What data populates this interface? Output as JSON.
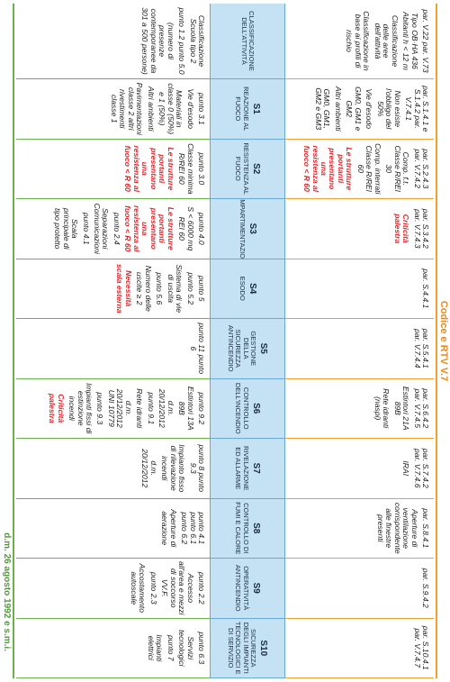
{
  "codice_title": "Codice e RTV V.7",
  "dm_title": "d.m. 26 agosto 1992 e s.m.i.",
  "rows": [
    {
      "title": "Classificazione dell'attività",
      "codice": [
        {
          "text": "par. V.22 par. V.73"
        },
        {
          "text": "Tipo OB·HA 436 Abitanti h < 12 m"
        },
        {
          "text": "Classificazione delle aree dell'attività"
        },
        {
          "text": "Classificazione in base ai profili di rischio"
        }
      ],
      "dm": [
        {
          "text": "Classificazione Scuola tipo 2"
        },
        {
          "text": "punto 1.2 punto 5.0"
        },
        {
          "text": "(numero di presenze contemporanee da 301 a 500 persone)"
        }
      ]
    },
    {
      "code": "S1",
      "title": "Reazione al fuoco",
      "codice": [
        {
          "text": "par. S.1.4.1 e S.1.4.2 par. V.7.4.1"
        },
        {
          "text": "Non esiste l'obbligo del 50%"
        },
        {
          "text": "Vie d'esodo"
        },
        {
          "text": "GM0, GM1 e GM2"
        },
        {
          "text": "Altri ambienti"
        },
        {
          "text": "GM0, GM1, GM2 e GM3"
        }
      ],
      "dm": [
        {
          "text": "punto 3.1"
        },
        {
          "text": "Vie d'esodo"
        },
        {
          "text": "Materiali in classe 0 (50%) e 1 (50%)"
        },
        {
          "text": "Altri ambienti"
        },
        {
          "text": "Pavimentazioni classe 2 altri rivestimenti classe 1"
        }
      ]
    },
    {
      "code": "S2",
      "title": "Resistenza al fuoco",
      "codice": [
        {
          "text": "par. S.2.4.3 par. V.7.4.2"
        },
        {
          "text": "Comp. f.t. Classe R/REI 30"
        },
        {
          "text": "Comp. interrati Classe R/REI 60"
        },
        {
          "text": "Le strutture portanti presentano una resistenza al fuoco < R 60",
          "color": "#e0262b"
        }
      ],
      "dm": [
        {
          "text": "punto 3.0"
        },
        {
          "text": "Classe minima R/REI 60"
        },
        {
          "text": "Le strutture portanti presentano una resistenza al fuoco < R 60",
          "color": "#e0262b"
        }
      ]
    },
    {
      "code": "S3",
      "title": "Compartimentazione",
      "codice": [
        {
          "text": "par. S.3.4.2 par. V.7.4.3"
        },
        {
          "text": "Criticità palestra",
          "color": "#e0262b"
        }
      ],
      "dm": [
        {
          "text": "punto 4.0"
        },
        {
          "text": "S < 6000 mq REI 60"
        },
        {
          "text": "Le strutture portanti presentano una resistenza al fuoco < R 60",
          "color": "#e0262b"
        },
        {
          "text": "punto 2.4"
        },
        {
          "text": "Separazioni Comunicazioni"
        },
        {
          "text": "punto 4.1"
        },
        {
          "text": "Scala principale di tipo protetto"
        }
      ]
    },
    {
      "code": "S4",
      "title": "Esodo",
      "codice": [
        {
          "text": "par. S.4.4.1"
        }
      ],
      "dm": [
        {
          "text": "punto 5"
        },
        {
          "text": "punto 5.2"
        },
        {
          "text": "Sistema di vie di uscita"
        },
        {
          "text": "punto 5.6"
        },
        {
          "text": "Numero delle uscite ≥ 2"
        },
        {
          "text": "Necessità scala esterna",
          "color": "#e0262b"
        }
      ]
    },
    {
      "code": "S5",
      "title": "Gestione della sicurezza antincendio",
      "codice": [
        {
          "text": "par. S.5.4.1 par. V.7.4.4"
        }
      ],
      "dm": [
        {
          "text": "punto 11 punto 6"
        }
      ]
    },
    {
      "code": "S6",
      "title": "Controllo dell'incendio",
      "codice": [
        {
          "text": "par. S.6.4.2 par. V.7.4.5"
        },
        {
          "text": "Estintori 21A 89B"
        },
        {
          "text": "Rete idranti (naspi)"
        }
      ],
      "dm": [
        {
          "text": "punto 9.2"
        },
        {
          "text": "Estintori 13A 89B"
        },
        {
          "text": "d.m. 20/12/2012"
        },
        {
          "text": "punto 9.1"
        },
        {
          "text": "Rete idranti"
        },
        {
          "text": "d.m. 20/12/2012 UNI 10779"
        },
        {
          "text": "punto 9.3"
        },
        {
          "text": "Impianti fissi di estinzione incendi"
        },
        {
          "text": "Criticità palestra",
          "color": "#e0262b"
        }
      ]
    },
    {
      "code": "S7",
      "title": "Rivelazione ed allarme",
      "codice": [
        {
          "text": "par. S.7.4.2 par. V.7.4.6"
        },
        {
          "text": "IRAI"
        }
      ],
      "dm": [
        {
          "text": "punto 8 punto 9.3"
        },
        {
          "text": "Impianto fisso di rilevazione incendi"
        },
        {
          "text": "d.m. 20/12/2012"
        }
      ]
    },
    {
      "code": "S8",
      "title": "Controllo di fumi e calore",
      "codice": [
        {
          "text": "par. S.8.4.1"
        },
        {
          "text": "Aperture di ventilazione corrispondente alle finestre presenti"
        }
      ],
      "dm": [
        {
          "text": "punto 4.1 punto 6.1 punto 6.2"
        },
        {
          "text": "Aperture di aerazione"
        }
      ]
    },
    {
      "code": "S9",
      "title": "Operatività antincendio",
      "codice": [
        {
          "text": "par. S.9.4.2"
        }
      ],
      "dm": [
        {
          "text": "punto 2.2"
        },
        {
          "text": "Accesso all'area e mezzi di soccorso VV.F."
        },
        {
          "text": "punto 2.3"
        },
        {
          "text": "Accostamento autoscale"
        }
      ]
    },
    {
      "code": "S10",
      "title": "Sicurezza degli impianti tecnologici e di servizio",
      "codice": [
        {
          "text": "par. S.10.4.1 par. V.7.4.7"
        }
      ],
      "dm": [
        {
          "text": "punto 6.3"
        },
        {
          "text": "Servizi tecnologici"
        },
        {
          "text": "punto 7"
        },
        {
          "text": "Impianti elettrici"
        }
      ]
    }
  ]
}
